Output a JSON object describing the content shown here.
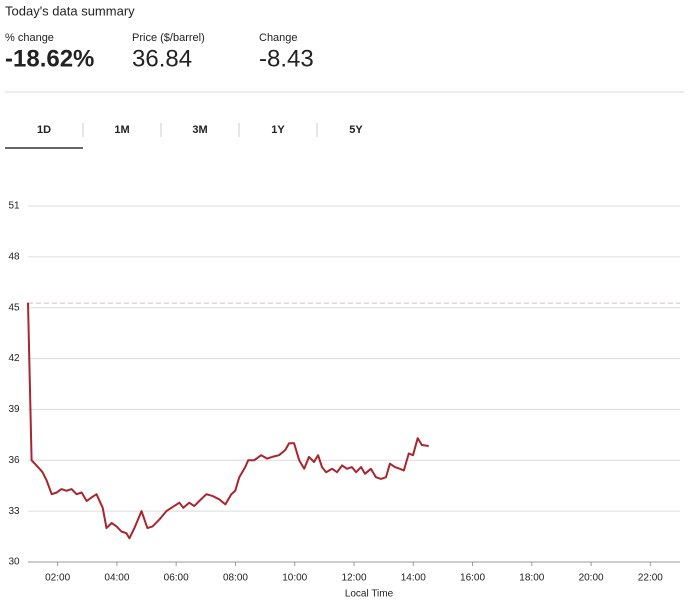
{
  "summary": {
    "title": "Today's data summary",
    "stats": [
      {
        "label": "% change",
        "value": "-18.62%",
        "color": "#b5282e",
        "bold": true
      },
      {
        "label": "Price ($/barrel)",
        "value": "36.84",
        "color": "#111111",
        "bold": false
      },
      {
        "label": "Change",
        "value": "-8.43",
        "color": "#b5282e",
        "bold": false
      }
    ]
  },
  "tabs": [
    "1D",
    "1M",
    "3M",
    "1Y",
    "5Y"
  ],
  "active_tab": 0,
  "chart_data": {
    "type": "line",
    "x_label": "Local Time",
    "grid": true,
    "xlim": [
      1,
      23
    ],
    "ylim": [
      30,
      51
    ],
    "xticks": [
      {
        "value": 2,
        "label": "02:00"
      },
      {
        "value": 4,
        "label": "04:00"
      },
      {
        "value": 6,
        "label": "06:00"
      },
      {
        "value": 8,
        "label": "08:00"
      },
      {
        "value": 10,
        "label": "10:00"
      },
      {
        "value": 12,
        "label": "12:00"
      },
      {
        "value": 14,
        "label": "14:00"
      },
      {
        "value": 16,
        "label": "16:00"
      },
      {
        "value": 18,
        "label": "18:00"
      },
      {
        "value": 20,
        "label": "20:00"
      },
      {
        "value": 22,
        "label": "22:00"
      }
    ],
    "yticks": [
      30,
      33,
      36,
      39,
      42,
      45,
      48,
      51
    ],
    "reference_line": 45.27,
    "x": [
      1.0,
      1.12,
      1.23,
      1.39,
      1.49,
      1.63,
      1.8,
      1.97,
      2.13,
      2.3,
      2.47,
      2.64,
      2.81,
      2.98,
      3.14,
      3.31,
      3.52,
      3.65,
      3.82,
      3.99,
      4.15,
      4.32,
      4.42,
      4.59,
      4.83,
      5.03,
      5.2,
      5.43,
      5.67,
      5.84,
      6.11,
      6.24,
      6.44,
      6.61,
      6.78,
      7.02,
      7.22,
      7.45,
      7.66,
      7.86,
      7.99,
      8.13,
      8.33,
      8.43,
      8.63,
      8.87,
      9.07,
      9.24,
      9.47,
      9.68,
      9.81,
      9.98,
      10.15,
      10.32,
      10.48,
      10.65,
      10.79,
      10.92,
      11.06,
      11.26,
      11.43,
      11.6,
      11.76,
      11.93,
      12.07,
      12.24,
      12.37,
      12.57,
      12.74,
      12.91,
      13.08,
      13.21,
      13.38,
      13.55,
      13.68,
      13.85,
      13.99,
      14.15,
      14.29,
      14.52
    ],
    "series": [
      {
        "color": "#a8262c",
        "values": [
          45.3,
          36.0,
          35.8,
          35.5,
          35.3,
          34.8,
          34.0,
          34.1,
          34.3,
          34.2,
          34.3,
          34.0,
          34.1,
          33.6,
          33.8,
          34.0,
          33.2,
          32.0,
          32.3,
          32.1,
          31.8,
          31.7,
          31.4,
          32.0,
          33.0,
          32.0,
          32.1,
          32.5,
          33.0,
          33.2,
          33.5,
          33.2,
          33.5,
          33.3,
          33.6,
          34.0,
          33.9,
          33.7,
          33.4,
          34.0,
          34.2,
          35.0,
          35.6,
          36.0,
          36.0,
          36.3,
          36.1,
          36.2,
          36.3,
          36.6,
          37.0,
          37.0,
          36.0,
          35.5,
          36.2,
          35.9,
          36.3,
          35.6,
          35.3,
          35.5,
          35.3,
          35.7,
          35.5,
          35.6,
          35.3,
          35.6,
          35.2,
          35.5,
          35.0,
          34.9,
          35.0,
          35.8,
          35.6,
          35.5,
          35.4,
          36.4,
          36.3,
          37.3,
          36.9,
          36.84
        ]
      }
    ]
  }
}
